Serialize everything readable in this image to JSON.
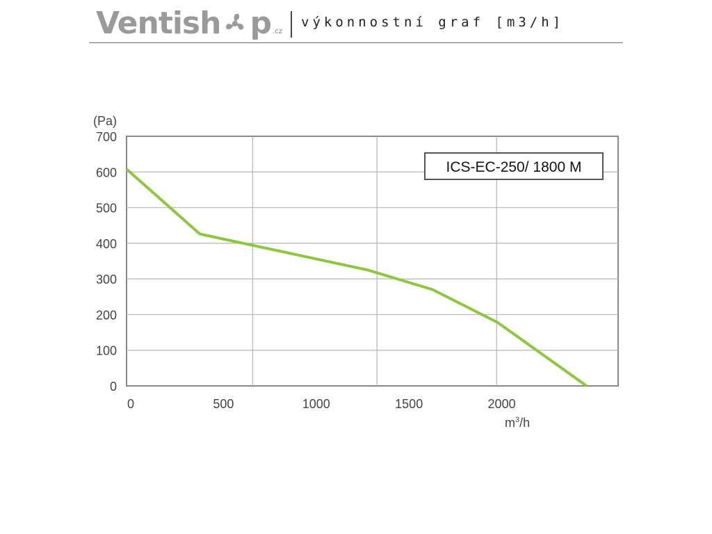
{
  "header": {
    "brand_main": "Ventish",
    "brand_end": "p",
    "brand_tld": ".cz",
    "subtitle": "výkonnostní graf [m3/h]",
    "brand_color": "#9a9a9a",
    "fan_accent": "#9a9a9a"
  },
  "chart_data": {
    "type": "line",
    "title": "",
    "legend_label": "ICS-EC-250/ 1800 M",
    "xlabel": "m³/h",
    "ylabel": "(Pa)",
    "xlim": [
      0,
      2650
    ],
    "ylim": [
      0,
      700
    ],
    "x_ticks": [
      0,
      500,
      1000,
      1500,
      2000
    ],
    "x_tick_labels": [
      "0",
      "500",
      "1000",
      "1500",
      "2000"
    ],
    "y_ticks": [
      0,
      100,
      200,
      300,
      400,
      500,
      600,
      700
    ],
    "y_tick_labels": [
      "0",
      "100",
      "200",
      "300",
      "400",
      "500",
      "600",
      "700"
    ],
    "x_gridlines": [
      680,
      1350,
      1995
    ],
    "grid": true,
    "line_color": "#8dc63f",
    "series": [
      {
        "name": "ICS-EC-250/ 1800 M",
        "x": [
          0,
          395,
          1300,
          1650,
          2000,
          2480
        ],
        "y": [
          608,
          426,
          325,
          270,
          178,
          0
        ]
      }
    ]
  }
}
